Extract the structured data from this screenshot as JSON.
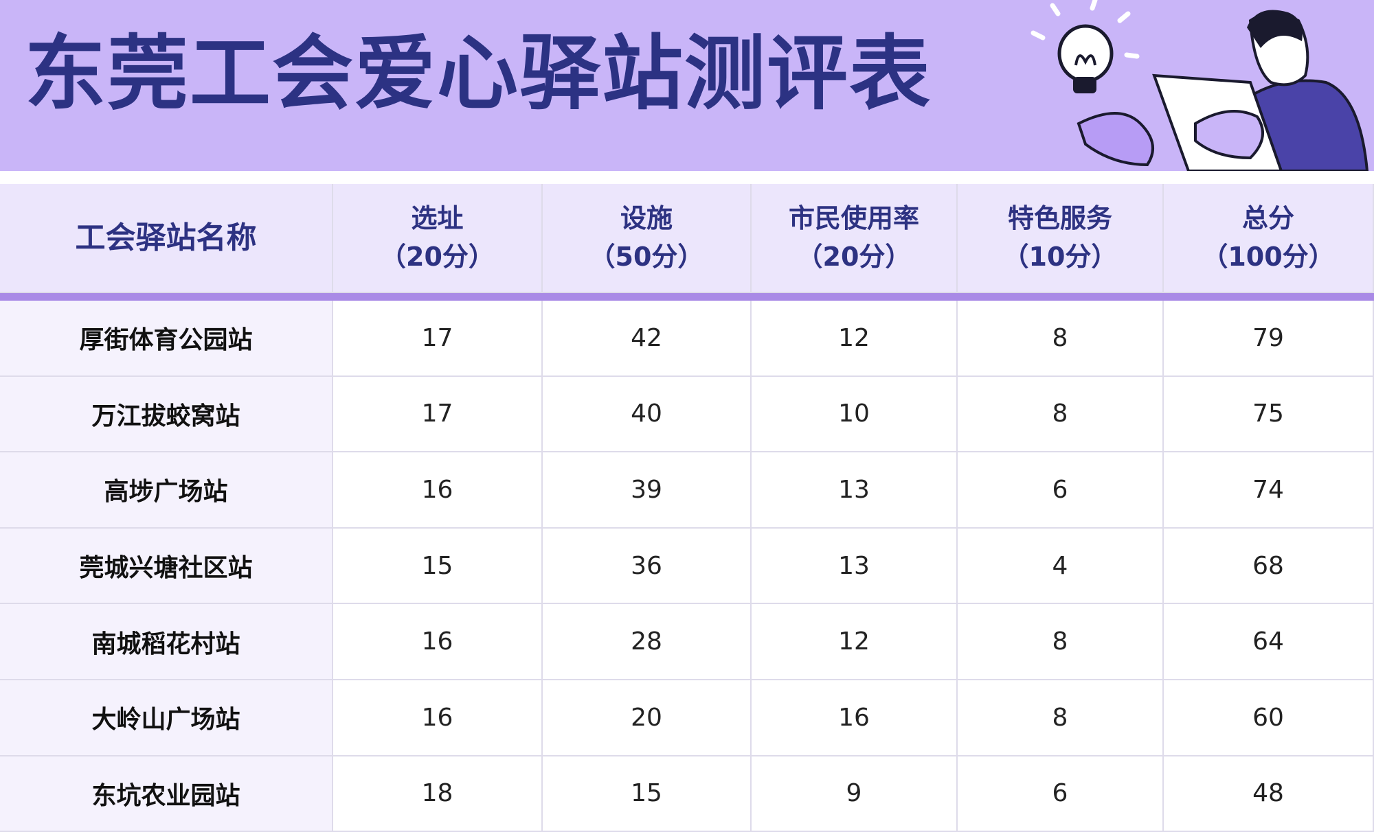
{
  "header": {
    "title": "东莞工会爱心驿站测评表"
  },
  "table": {
    "columns": [
      {
        "name": "工会驿站名称"
      },
      {
        "name": "选址",
        "note": "（20分）"
      },
      {
        "name": "设施",
        "note": "（50分）"
      },
      {
        "name": "市民使用率",
        "note": "（20分）"
      },
      {
        "name": "特色服务",
        "note": "（10分）"
      },
      {
        "name": "总分",
        "note": "（100分）"
      }
    ],
    "rows": [
      [
        "厚街体育公园站",
        17,
        42,
        12,
        8,
        79
      ],
      [
        "万江拔蛟窝站",
        17,
        40,
        10,
        8,
        75
      ],
      [
        "高埗广场站",
        16,
        39,
        13,
        6,
        74
      ],
      [
        "莞城兴塘社区站",
        15,
        36,
        13,
        4,
        68
      ],
      [
        "南城稻花村站",
        16,
        28,
        12,
        8,
        64
      ],
      [
        "大岭山广场站",
        16,
        20,
        16,
        8,
        60
      ],
      [
        "东坑农业园站",
        18,
        15,
        9,
        6,
        48
      ]
    ]
  }
}
